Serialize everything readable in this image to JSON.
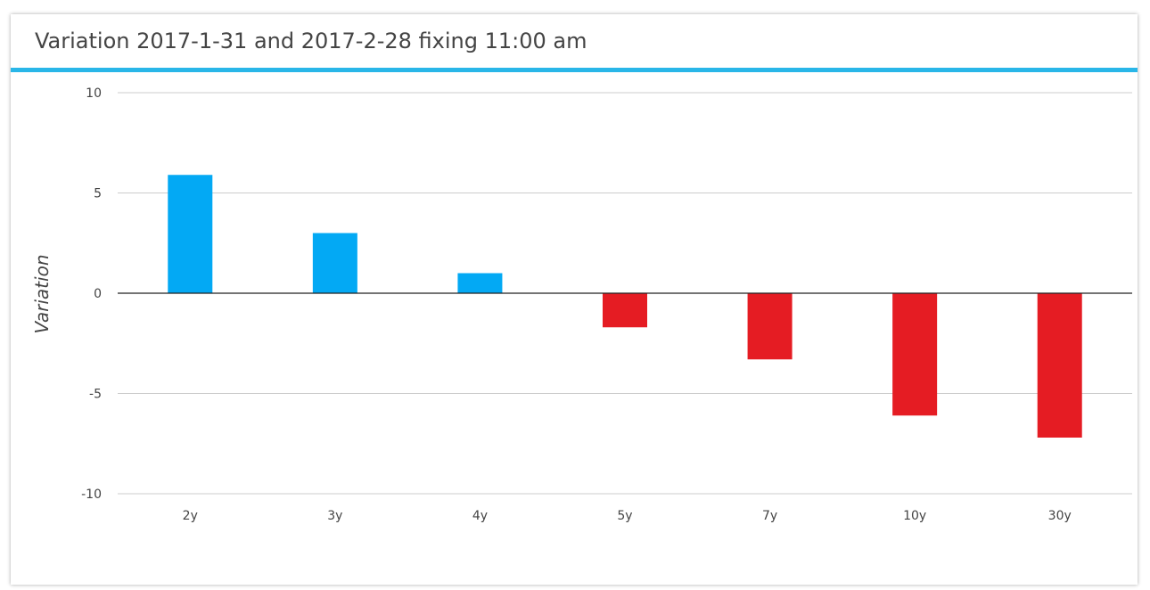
{
  "header": {
    "title": "Variation 2017-1-31 and 2017-2-28 fixing 11:00 am"
  },
  "colors": {
    "accent": "#29b6e8",
    "positive": "#03a9f4",
    "negative": "#e51c23",
    "gridline": "#cccccc",
    "zero_line": "#222222"
  },
  "chart_data": {
    "type": "bar",
    "title": "Variation 2017-1-31 and 2017-2-28 fixing 11:00 am",
    "xlabel": "",
    "ylabel": "Variation",
    "categories": [
      "2y",
      "3y",
      "4y",
      "5y",
      "7y",
      "10y",
      "30y"
    ],
    "values": [
      5.9,
      3.0,
      1.0,
      -1.7,
      -3.3,
      -6.1,
      -7.2
    ],
    "ylim": [
      -10,
      10
    ],
    "yticks": [
      10,
      5,
      0,
      -5,
      -10
    ],
    "ytick_labels": [
      "10",
      "5",
      "0",
      "-5",
      "-10"
    ],
    "grid": true,
    "legend": "none"
  }
}
